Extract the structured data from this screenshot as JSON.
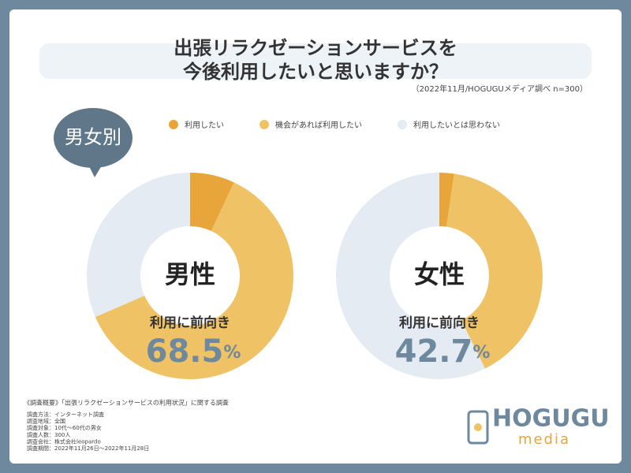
{
  "header": {
    "title_lines": [
      "出張リラクゼーションサービスを",
      "今後利用したいと思いますか？"
    ],
    "source": "（2022年11月/HOGUGUメディア調べ n=300）"
  },
  "badge": "男女別",
  "legend": [
    {
      "name": "利用したい",
      "color": "#e8a63a"
    },
    {
      "name": "機会があれば利用したい",
      "color": "#f0c266"
    },
    {
      "name": "利用したいとは思わない",
      "color": "#e5ebf2"
    }
  ],
  "chart_data": [
    {
      "type": "pie",
      "title": "男性",
      "values": [
        7,
        61.5,
        31.5
      ],
      "summary": {
        "label": "利用に前向き",
        "value": 68.5,
        "unit": "%"
      }
    },
    {
      "type": "pie",
      "title": "女性",
      "values": [
        2.3,
        40.4,
        57.3
      ],
      "summary": {
        "label": "利用に前向き",
        "value": 42.7,
        "unit": "%"
      }
    }
  ],
  "survey": {
    "heading": "《調査概要》「出張リラクゼーションサービスの利用状況」に関する調査",
    "lines": [
      "調査方法：インターネット調査",
      "調査地域：全国",
      "調査対象：10代〜60代の男女",
      "調査人数：300人",
      "調査会社：株式会社leopardo",
      "調査期間：2022年11月26日〜2022年11月28日"
    ]
  },
  "logo": {
    "name": "HOGUGU",
    "sub": "media"
  }
}
